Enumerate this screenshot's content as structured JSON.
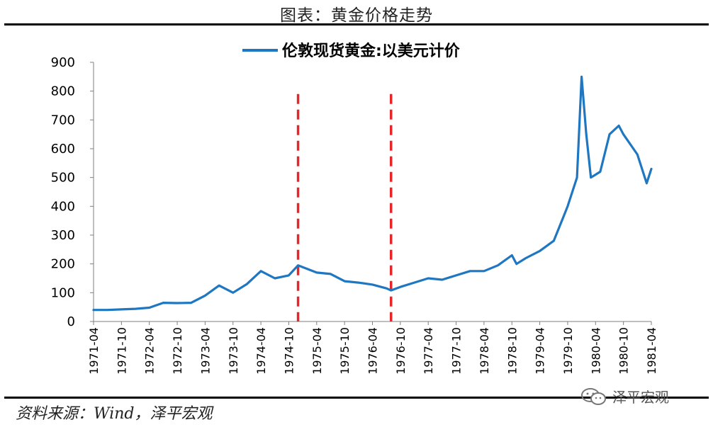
{
  "title": "图表：黄金价格走势",
  "source": "资料来源：Wind，泽平宏观",
  "watermark": "泽平宏观",
  "colors": {
    "series": "#1f77c2",
    "marker": "#e8262a",
    "axis": "#7f7f7f"
  },
  "chart_data": {
    "type": "line",
    "series": [
      {
        "name": "伦敦现货黄金:以美元计价",
        "points": [
          [
            "1971-04",
            40
          ],
          [
            "1971-07",
            40
          ],
          [
            "1971-10",
            42
          ],
          [
            "1972-01",
            44
          ],
          [
            "1972-04",
            48
          ],
          [
            "1972-07",
            65
          ],
          [
            "1972-10",
            64
          ],
          [
            "1973-01",
            65
          ],
          [
            "1973-04",
            90
          ],
          [
            "1973-07",
            125
          ],
          [
            "1973-10",
            100
          ],
          [
            "1974-01",
            130
          ],
          [
            "1974-04",
            175
          ],
          [
            "1974-07",
            150
          ],
          [
            "1974-10",
            160
          ],
          [
            "1974-12",
            195
          ],
          [
            "1975-04",
            170
          ],
          [
            "1975-07",
            165
          ],
          [
            "1975-10",
            140
          ],
          [
            "1976-01",
            135
          ],
          [
            "1976-04",
            128
          ],
          [
            "1976-07",
            115
          ],
          [
            "1976-08",
            108
          ],
          [
            "1976-10",
            120
          ],
          [
            "1977-01",
            135
          ],
          [
            "1977-04",
            150
          ],
          [
            "1977-07",
            145
          ],
          [
            "1977-10",
            160
          ],
          [
            "1978-01",
            175
          ],
          [
            "1978-04",
            175
          ],
          [
            "1978-07",
            195
          ],
          [
            "1978-10",
            230
          ],
          [
            "1978-11",
            200
          ],
          [
            "1979-01",
            220
          ],
          [
            "1979-04",
            245
          ],
          [
            "1979-07",
            280
          ],
          [
            "1979-09",
            360
          ],
          [
            "1979-10",
            400
          ],
          [
            "1979-12",
            500
          ],
          [
            "1980-01",
            850
          ],
          [
            "1980-02",
            650
          ],
          [
            "1980-03",
            500
          ],
          [
            "1980-04",
            510
          ],
          [
            "1980-05",
            520
          ],
          [
            "1980-07",
            650
          ],
          [
            "1980-09",
            680
          ],
          [
            "1980-10",
            650
          ],
          [
            "1981-01",
            580
          ],
          [
            "1981-03",
            480
          ],
          [
            "1981-04",
            530
          ]
        ]
      }
    ],
    "x_ticks": [
      "1971-04",
      "1971-10",
      "1972-04",
      "1972-10",
      "1973-04",
      "1973-10",
      "1974-04",
      "1974-10",
      "1975-04",
      "1975-10",
      "1976-04",
      "1976-10",
      "1977-04",
      "1977-10",
      "1978-04",
      "1978-10",
      "1979-04",
      "1979-10",
      "1980-04",
      "1980-10",
      "1981-04"
    ],
    "x_range": [
      "1971-04",
      "1981-04"
    ],
    "y_ticks": [
      0,
      100,
      200,
      300,
      400,
      500,
      600,
      700,
      800,
      900
    ],
    "ylim": [
      0,
      900
    ],
    "reference_lines": [
      {
        "type": "vertical",
        "x": "1974-12",
        "style": "dashed"
      },
      {
        "type": "vertical",
        "x": "1976-08",
        "style": "dashed"
      }
    ],
    "legend_position": "top-center",
    "grid": false
  }
}
